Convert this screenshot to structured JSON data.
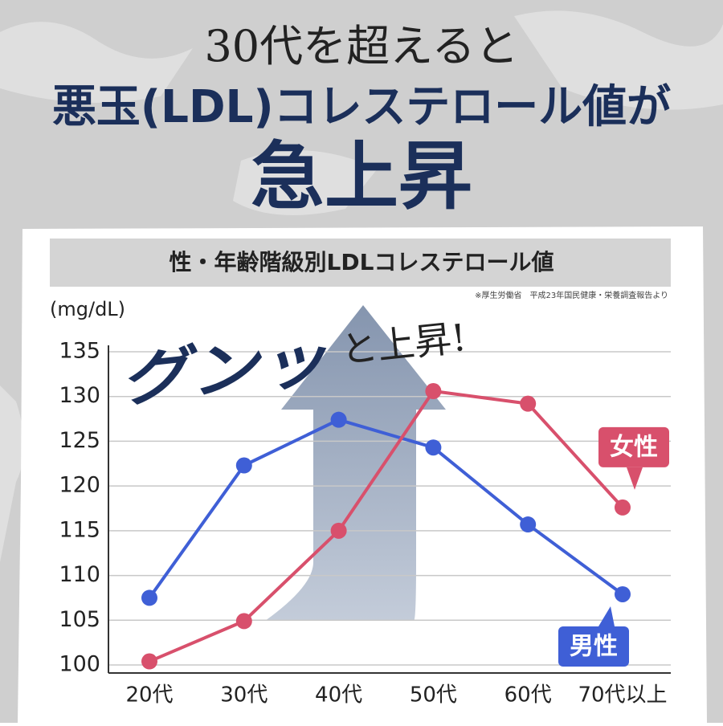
{
  "header": {
    "line1": "30代を超えると",
    "line2": "悪玉(LDL)コレステロール値が",
    "line3": "急上昇"
  },
  "chart_data": {
    "type": "line",
    "title": "性・年齢階級別LDLコレステロール値",
    "source": "※厚生労働省　平成23年国民健康・栄養調査報告より",
    "y_label": "(mg/dL)",
    "annotations": [
      "グンッ",
      "と上昇!"
    ],
    "categories": [
      "20代",
      "30代",
      "40代",
      "50代",
      "60代",
      "70代以上"
    ],
    "series": [
      {
        "name": "男性",
        "color": "#3f5fd6",
        "values": [
          107.5,
          122.3,
          127.4,
          124.3,
          115.7,
          107.9
        ]
      },
      {
        "name": "女性",
        "color": "#d8506c",
        "values": [
          100.4,
          104.9,
          115.0,
          130.6,
          129.2,
          117.6
        ]
      }
    ],
    "ylim": [
      100,
      135
    ],
    "yticks": [
      100,
      105,
      110,
      115,
      120,
      125,
      130,
      135
    ],
    "grid": true
  }
}
